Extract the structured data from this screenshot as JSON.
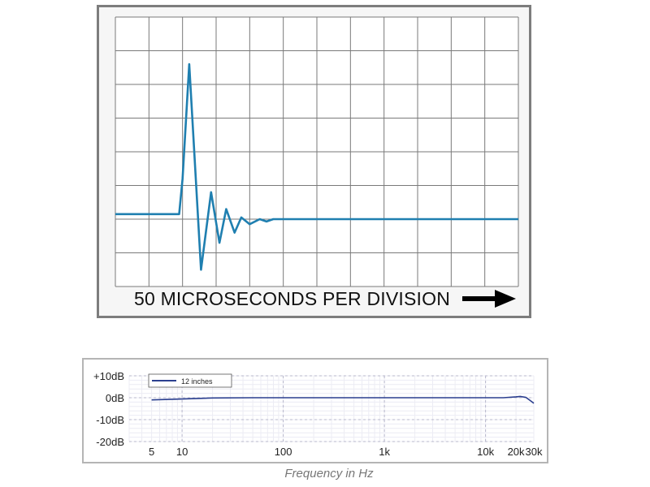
{
  "chart_data": [
    {
      "type": "line",
      "title": "",
      "caption": "50 MICROSECONDS PER DIVISION",
      "grid": true,
      "grid_divisions": {
        "x": 12,
        "y": 8
      },
      "xlim": [
        0,
        12
      ],
      "ylim": [
        0,
        8
      ],
      "series": [
        {
          "color": "#1f7fb0",
          "x": [
            0,
            1.9,
            2.0,
            2.2,
            2.55,
            2.85,
            3.1,
            3.3,
            3.55,
            3.75,
            4.0,
            4.3,
            4.5,
            4.7,
            5.0,
            12
          ],
          "y": [
            2.15,
            2.15,
            3.2,
            6.6,
            0.5,
            2.8,
            1.3,
            2.3,
            1.6,
            2.05,
            1.85,
            2.0,
            1.93,
            2.0,
            2.0,
            2.0
          ]
        }
      ]
    },
    {
      "type": "line",
      "xscale": "log",
      "xlabel": "Frequency in Hz",
      "ylabel": "",
      "xlim": [
        3,
        30000
      ],
      "ylim": [
        -20,
        10
      ],
      "grid": true,
      "legend_position": "top-left",
      "x_ticks": [
        5,
        10,
        100,
        1000,
        10000,
        20000,
        30000
      ],
      "x_tick_labels": [
        "5",
        "10",
        "100",
        "1k",
        "10k",
        "20k",
        "30k"
      ],
      "y_ticks": [
        10,
        0,
        -10,
        -20
      ],
      "y_tick_labels": [
        "+10dB",
        "0dB",
        "-10dB",
        "-20dB"
      ],
      "series": [
        {
          "name": "12 inches",
          "color": "#2b3f8f",
          "x": [
            5,
            10,
            20,
            50,
            100,
            1000,
            10000,
            15000,
            20000,
            22000,
            25000,
            28000,
            30000
          ],
          "y": [
            -1.0,
            -0.6,
            -0.1,
            0.0,
            0.0,
            0.0,
            0.0,
            0.0,
            0.4,
            0.6,
            0.2,
            -1.5,
            -2.5
          ]
        }
      ]
    }
  ]
}
